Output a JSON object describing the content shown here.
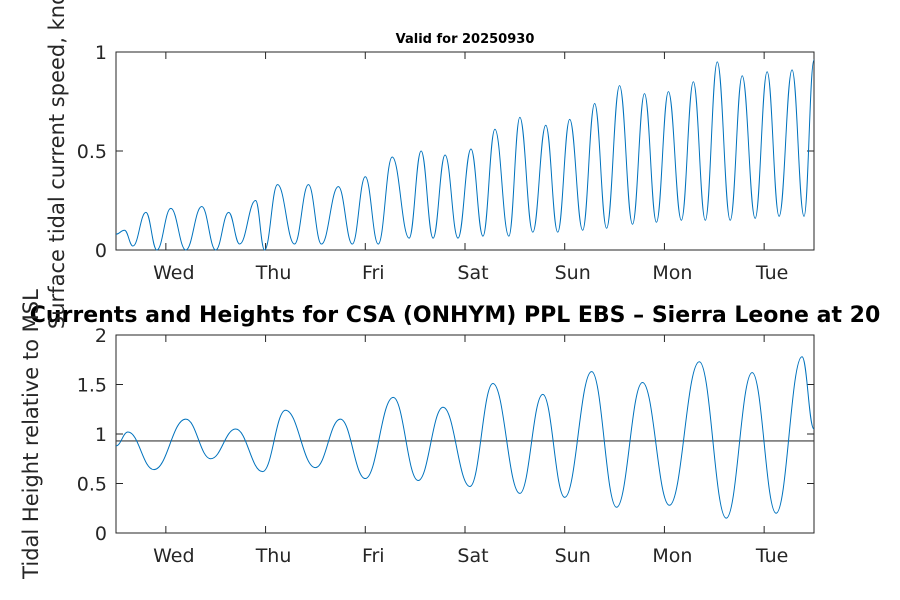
{
  "chart_data": [
    {
      "type": "line",
      "title": "Valid for 20250930",
      "ylabel": "Surface tidal current speed, knots",
      "xlabel": "",
      "x_tick_labels": [
        "Wed",
        "Thu",
        "Fri",
        "Sat",
        "Sun",
        "Mon",
        "Tue"
      ],
      "x_unit": "days since start of record",
      "xlim": [
        0,
        7
      ],
      "ylim": [
        0,
        1
      ],
      "y_ticks": [
        0,
        0.5,
        1
      ],
      "y_tick_labels": [
        "0",
        "0.5",
        "1"
      ],
      "series": [
        {
          "name": "current speed",
          "color": "#0072BD",
          "x": [
            0,
            0.085,
            0.17,
            0.3,
            0.41,
            0.55,
            0.7,
            0.86,
            1.0,
            1.13,
            1.24,
            1.4,
            1.49,
            1.62,
            1.79,
            1.93,
            2.06,
            2.23,
            2.37,
            2.5,
            2.63,
            2.77,
            2.94,
            3.06,
            3.18,
            3.3,
            3.43,
            3.56,
            3.68,
            3.8,
            3.94,
            4.05,
            4.18,
            4.31,
            4.43,
            4.55,
            4.68,
            4.8,
            4.92,
            5.05,
            5.18,
            5.3,
            5.42,
            5.54,
            5.67,
            5.79,
            5.91,
            6.03,
            6.16,
            6.28,
            6.41,
            6.53,
            6.65,
            6.78,
            6.9,
            7.0
          ],
          "values": [
            0.08,
            0.1,
            0.02,
            0.19,
            0.0,
            0.21,
            0.0,
            0.22,
            0.0,
            0.19,
            0.03,
            0.25,
            0.0,
            0.33,
            0.03,
            0.33,
            0.03,
            0.32,
            0.03,
            0.37,
            0.03,
            0.47,
            0.06,
            0.5,
            0.06,
            0.48,
            0.06,
            0.51,
            0.07,
            0.61,
            0.07,
            0.67,
            0.09,
            0.63,
            0.09,
            0.66,
            0.1,
            0.74,
            0.11,
            0.83,
            0.13,
            0.79,
            0.14,
            0.8,
            0.15,
            0.85,
            0.15,
            0.95,
            0.15,
            0.88,
            0.16,
            0.9,
            0.17,
            0.91,
            0.17,
            0.96
          ]
        }
      ]
    },
    {
      "type": "line",
      "title": "Currents and Heights for CSA (ONHYM) PPL EBS  – Sierra Leone at 20",
      "ylabel": "Tidal Height relative to MSL",
      "xlabel": "",
      "x_tick_labels": [
        "Wed",
        "Thu",
        "Fri",
        "Sat",
        "Sun",
        "Mon",
        "Tue"
      ],
      "x_unit": "days since start of record",
      "xlim": [
        0,
        7
      ],
      "ylim": [
        0,
        2
      ],
      "y_ticks": [
        0,
        0.5,
        1,
        1.5,
        2
      ],
      "y_tick_labels": [
        "0",
        "0.5",
        "1",
        "1.5",
        "2"
      ],
      "reference_line": 0.93,
      "series": [
        {
          "name": "tidal height",
          "color": "#0072BD",
          "x": [
            0,
            0.12,
            0.38,
            0.7,
            0.95,
            1.2,
            1.47,
            1.7,
            2.0,
            2.25,
            2.5,
            2.78,
            3.03,
            3.28,
            3.55,
            3.78,
            4.05,
            4.28,
            4.5,
            4.77,
            5.02,
            5.28,
            5.55,
            5.85,
            6.12,
            6.38,
            6.62,
            6.88,
            7.0
          ],
          "values": [
            0.88,
            1.02,
            0.64,
            1.15,
            0.75,
            1.05,
            0.62,
            1.24,
            0.66,
            1.15,
            0.55,
            1.37,
            0.53,
            1.27,
            0.47,
            1.51,
            0.4,
            1.4,
            0.36,
            1.63,
            0.26,
            1.52,
            0.28,
            1.73,
            0.15,
            1.62,
            0.2,
            1.78,
            1.05
          ]
        }
      ]
    }
  ]
}
